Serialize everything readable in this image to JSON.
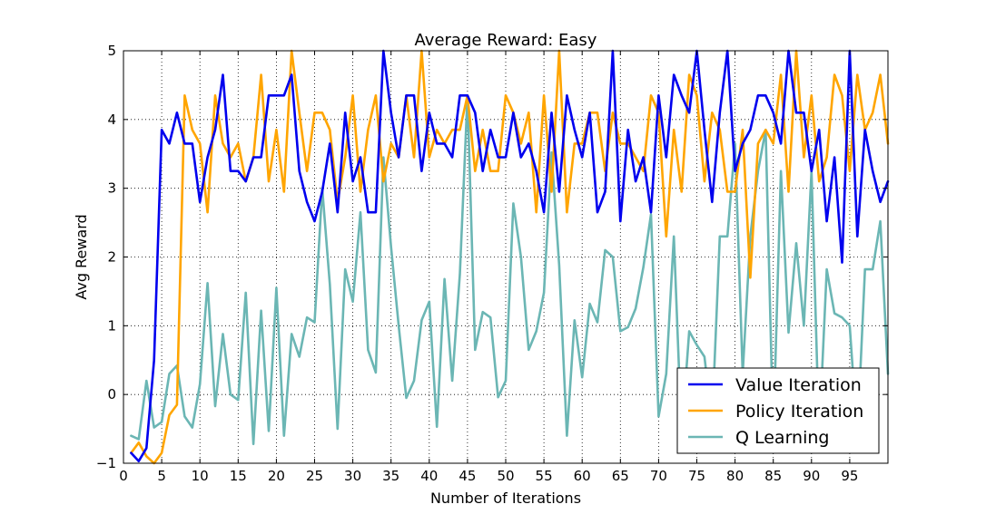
{
  "chart_data": {
    "type": "line",
    "title": "Average Reward: Easy",
    "xlabel": "Number of Iterations",
    "ylabel": "Avg Reward",
    "xlim": [
      0,
      100
    ],
    "ylim": [
      -1,
      5
    ],
    "xticks": [
      0,
      5,
      10,
      15,
      20,
      25,
      30,
      35,
      40,
      45,
      50,
      55,
      60,
      65,
      70,
      75,
      80,
      85,
      90,
      95
    ],
    "yticks": [
      -1,
      0,
      1,
      2,
      3,
      4,
      5
    ],
    "grid": true,
    "legend_position": "lower-right",
    "x": [
      1,
      2,
      3,
      4,
      5,
      6,
      7,
      8,
      9,
      10,
      11,
      12,
      13,
      14,
      15,
      16,
      17,
      18,
      19,
      20,
      21,
      22,
      23,
      24,
      25,
      26,
      27,
      28,
      29,
      30,
      31,
      32,
      33,
      34,
      35,
      36,
      37,
      38,
      39,
      40,
      41,
      42,
      43,
      44,
      45,
      46,
      47,
      48,
      49,
      50,
      51,
      52,
      53,
      54,
      55,
      56,
      57,
      58,
      59,
      60,
      61,
      62,
      63,
      64,
      65,
      66,
      67,
      68,
      69,
      70,
      71,
      72,
      73,
      74,
      75,
      76,
      77,
      78,
      79,
      80,
      81,
      82,
      83,
      84,
      85,
      86,
      87,
      88,
      89,
      90,
      91,
      92,
      93,
      94,
      95,
      96,
      97,
      98,
      99,
      100
    ],
    "series": [
      {
        "name": "Value Iteration",
        "color": "#0000ee",
        "values": [
          -0.85,
          -0.97,
          -0.78,
          0.5,
          3.85,
          3.65,
          4.1,
          3.65,
          3.65,
          2.8,
          3.45,
          3.85,
          4.65,
          3.25,
          3.25,
          3.1,
          3.45,
          3.45,
          4.35,
          4.35,
          4.35,
          4.65,
          3.25,
          2.8,
          2.52,
          2.95,
          3.65,
          2.65,
          4.1,
          3.1,
          3.45,
          2.65,
          2.65,
          5.0,
          4.1,
          3.45,
          4.35,
          4.35,
          3.25,
          4.1,
          3.65,
          3.65,
          3.45,
          4.35,
          4.35,
          4.1,
          3.25,
          3.85,
          3.45,
          3.45,
          4.1,
          3.45,
          3.65,
          3.25,
          2.65,
          4.1,
          2.95,
          4.35,
          3.85,
          3.45,
          4.1,
          2.65,
          2.95,
          5.0,
          2.52,
          3.85,
          3.1,
          3.45,
          2.65,
          4.35,
          3.45,
          4.65,
          4.35,
          4.1,
          5.0,
          3.85,
          2.8,
          4.1,
          5.0,
          3.25,
          3.65,
          3.85,
          4.35,
          4.35,
          4.1,
          3.65,
          5.0,
          4.1,
          4.1,
          3.25,
          3.85,
          2.52,
          3.45,
          1.92,
          5.0,
          2.3,
          3.85,
          3.25,
          2.8,
          3.1
        ]
      },
      {
        "name": "Policy Iteration",
        "color": "#ffa500",
        "values": [
          -0.85,
          -0.7,
          -0.9,
          -1.0,
          -0.85,
          -0.3,
          -0.15,
          4.35,
          3.85,
          3.65,
          2.65,
          4.35,
          3.65,
          3.45,
          3.65,
          3.1,
          3.45,
          4.65,
          3.1,
          3.85,
          2.95,
          5.0,
          4.1,
          3.25,
          4.1,
          4.1,
          3.85,
          2.8,
          3.45,
          4.35,
          2.95,
          3.85,
          4.35,
          3.1,
          3.65,
          3.45,
          4.35,
          3.45,
          5.0,
          3.45,
          3.85,
          3.65,
          3.85,
          3.85,
          4.35,
          3.25,
          3.85,
          3.25,
          3.25,
          4.35,
          4.1,
          3.65,
          4.1,
          2.65,
          4.35,
          2.95,
          5.0,
          2.65,
          3.65,
          3.65,
          4.1,
          4.1,
          3.25,
          4.1,
          3.65,
          3.65,
          3.45,
          3.25,
          4.35,
          4.1,
          2.3,
          3.85,
          2.95,
          4.65,
          4.35,
          3.1,
          4.1,
          3.85,
          2.95,
          2.95,
          3.85,
          1.7,
          3.65,
          3.85,
          3.65,
          4.65,
          2.95,
          5.0,
          3.45,
          4.35,
          3.1,
          3.45,
          4.65,
          4.35,
          3.25,
          4.65,
          3.85,
          4.1,
          4.65,
          3.65
        ]
      },
      {
        "name": "Q Learning",
        "color": "#6bb6b4",
        "values": [
          -0.6,
          -0.65,
          0.2,
          -0.48,
          -0.4,
          0.3,
          0.42,
          -0.32,
          -0.48,
          0.15,
          1.62,
          -0.17,
          0.88,
          0.0,
          -0.08,
          1.48,
          -0.72,
          1.22,
          -0.53,
          1.55,
          -0.6,
          0.88,
          0.55,
          1.12,
          1.05,
          3.0,
          1.6,
          -0.5,
          1.82,
          1.35,
          2.65,
          0.65,
          0.32,
          3.45,
          2.15,
          1.0,
          -0.05,
          0.2,
          1.08,
          1.35,
          -0.47,
          1.68,
          0.2,
          1.75,
          4.35,
          0.65,
          1.2,
          1.12,
          -0.04,
          0.2,
          2.78,
          2.0,
          0.65,
          0.92,
          1.48,
          3.52,
          1.88,
          -0.6,
          1.08,
          0.25,
          1.32,
          1.05,
          2.1,
          2.0,
          0.92,
          0.98,
          1.25,
          1.85,
          2.62,
          -0.32,
          0.3,
          2.3,
          -0.6,
          0.92,
          0.72,
          0.55,
          -0.4,
          2.3,
          2.3,
          3.65,
          0.3,
          2.3,
          3.25,
          3.85,
          -0.6,
          3.25,
          0.9,
          2.2,
          1.0,
          3.25,
          -0.6,
          1.82,
          1.18,
          1.12,
          1.0,
          -0.62,
          1.82,
          1.82,
          2.52,
          0.3
        ]
      }
    ]
  }
}
